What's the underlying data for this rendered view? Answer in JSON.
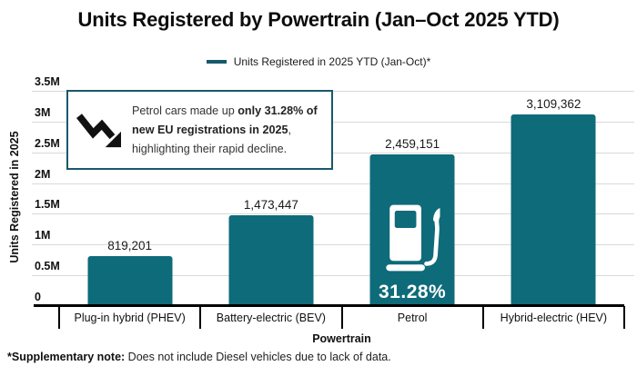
{
  "title": "Units Registered by Powertrain (Jan–Oct 2025 YTD)",
  "legend": {
    "label": "Units Registered in 2025 YTD (Jan-Oct)*",
    "marker_color": "#17596b",
    "marker_icon": "legend-dash-icon"
  },
  "annotation": {
    "icon": "trending-down-icon",
    "text_prefix": "Petrol cars made up ",
    "text_bold": "only 31.28% of new EU registrations in 2025",
    "text_suffix": ", highlighting their rapid decline.",
    "border_color": "#17596b"
  },
  "chart_data": {
    "type": "bar",
    "title": "Units Registered by Powertrain (Jan–Oct 2025 YTD)",
    "categories": [
      "Plug-in hybrid (PHEV)",
      "Battery-electric (BEV)",
      "Petrol",
      "Hybrid-electric (HEV)"
    ],
    "values": [
      819201,
      1473447,
      2459151,
      3109362
    ],
    "value_labels": [
      "819,201",
      "1,473,447",
      "2,459,151",
      "3,109,362"
    ],
    "xlabel": "Powertrain",
    "ylabel": "Units Registered in 2025",
    "ylim": [
      0,
      3500000
    ],
    "yticks": [
      "0",
      "0.5M",
      "1M",
      "1.5M",
      "2M",
      "2.5M",
      "3M",
      "3.5M"
    ],
    "grid": "horizontal",
    "legend_position": "top",
    "bar_color": "#0e6b7a",
    "highlight": {
      "category": "Petrol",
      "icon": "fuel-pump-icon",
      "label": "31.28%"
    }
  },
  "footnote": {
    "bold": "*Supplementary note:",
    "text": " Does not include Diesel vehicles due to lack of data."
  }
}
